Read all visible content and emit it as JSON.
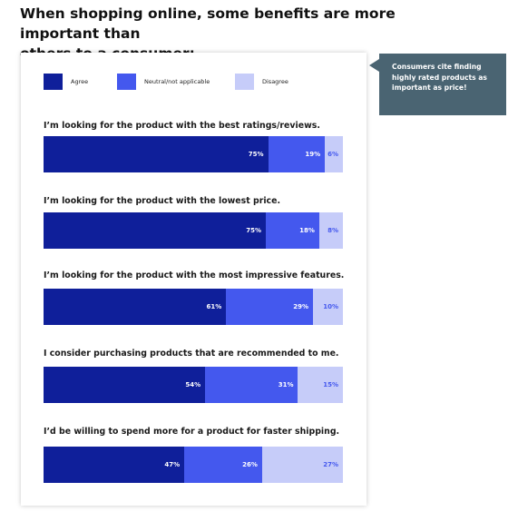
{
  "heading": {
    "line1": "When shopping online, some benefits are more important than",
    "line2": "others to a consumer:"
  },
  "callout": {
    "line1": "Consumers cite finding",
    "line2": "highly rated products as",
    "line3": "important as price!"
  },
  "colors": {
    "agree": "#0f1f9a",
    "neutral": "#4458ee",
    "disagree": "#c6ccf9",
    "callout_bg": "#4a6472"
  },
  "chart_data": {
    "type": "bar",
    "orientation": "horizontal-stacked-100",
    "legend_placement": "top",
    "legend": [
      "Agree",
      "Neutral/not applicable",
      "Disagree"
    ],
    "categories": [
      "I’m looking for the product with the best ratings/reviews.",
      "I’m looking for the product with the lowest price.",
      "I’m looking for the product with the most impressive features.",
      "I consider purchasing products that are recommended to me.",
      "I’d be willing to spend more for a product for faster shipping."
    ],
    "series": [
      {
        "name": "Agree",
        "values": [
          75,
          75,
          61,
          54,
          47
        ]
      },
      {
        "name": "Neutral/not applicable",
        "values": [
          19,
          18,
          29,
          31,
          26
        ]
      },
      {
        "name": "Disagree",
        "values": [
          6,
          8,
          10,
          15,
          27
        ]
      }
    ],
    "value_suffix": "%"
  }
}
